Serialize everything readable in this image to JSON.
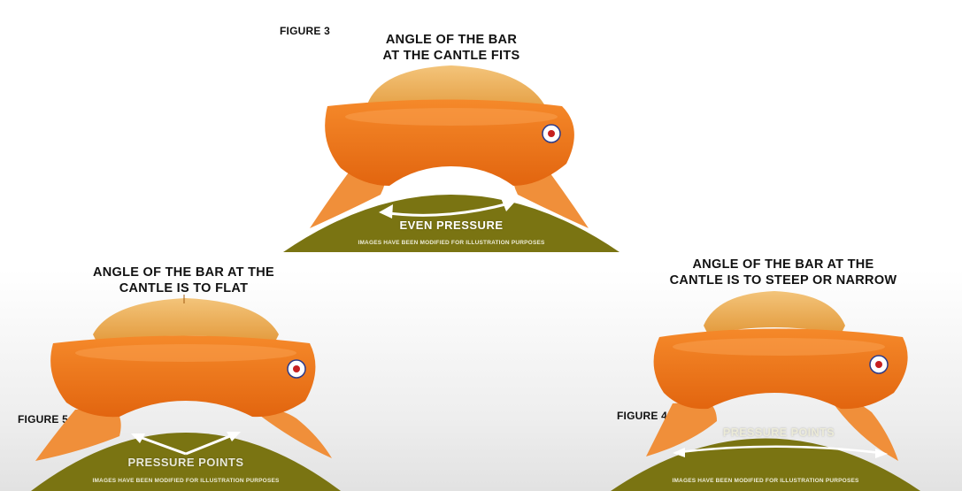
{
  "figure3": {
    "label": "FIGURE 3",
    "caption_line1": "ANGLE OF THE BAR",
    "caption_line2": "AT THE CANTLE FITS",
    "pressure_text": "EVEN PRESSURE",
    "disclaimer": "IMAGES HAVE BEEN MODIFIED FOR ILLUSTRATION PURPOSES"
  },
  "figure5": {
    "label": "FIGURE 5",
    "caption_line1": "ANGLE OF THE BAR AT THE",
    "caption_line2": "CANTLE IS TO FLAT",
    "pressure_text": "PRESSURE POINTS",
    "disclaimer": "IMAGES HAVE BEEN MODIFIED FOR ILLUSTRATION PURPOSES"
  },
  "figure4": {
    "label": "FIGURE 4",
    "caption_line1": "ANGLE OF THE BAR AT THE",
    "caption_line2": "CANTLE IS TO STEEP OR NARROW",
    "pressure_text": "PRESSURE POINTS",
    "disclaimer": "IMAGES HAVE BEEN MODIFIED FOR ILLUSTRATION PURPOSES"
  },
  "colors": {
    "saddle_orange": "#f07a1e",
    "saddle_dark": "#d75f12",
    "cantle_tan": "#f0b45a",
    "horse_olive": "#7a7412",
    "arrow_white": "#ffffff"
  }
}
